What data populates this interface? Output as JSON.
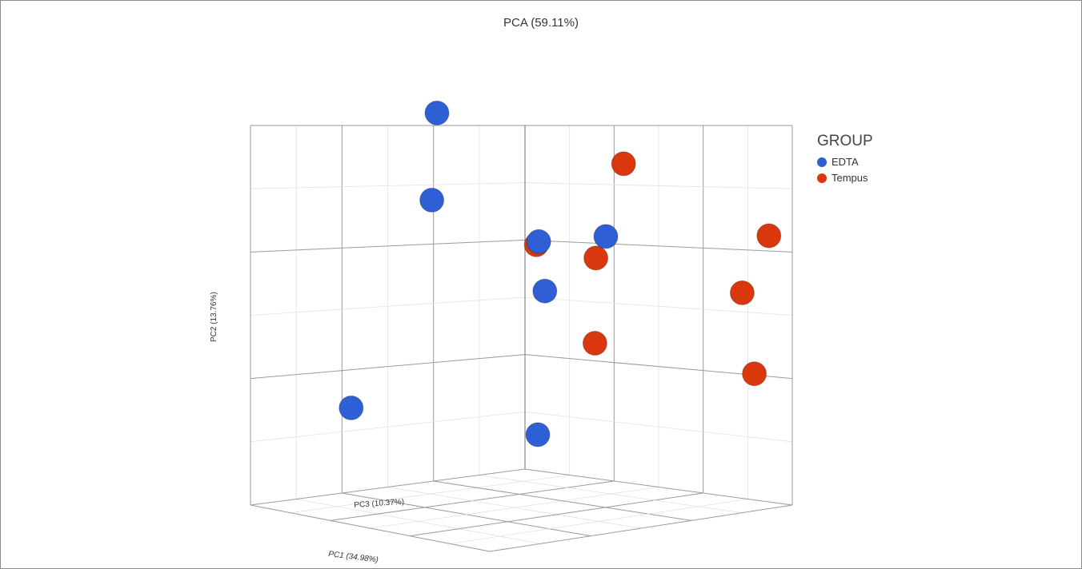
{
  "chart_data": {
    "type": "scatter",
    "subtype": "3d",
    "title": "PCA (59.11%)",
    "axes": {
      "x": "PC1 (34.98%)",
      "y": "PC2 (13.76%)",
      "z": "PC3 (10.37%)"
    },
    "legend": {
      "title": "GROUP",
      "placement": "right"
    },
    "series": [
      {
        "name": "EDTA",
        "color": "#2e5fd4",
        "points": [
          {
            "x": -0.5,
            "y": 2.9,
            "z": 0.4
          },
          {
            "x": -1.2,
            "y": 1.4,
            "z": 0.1
          },
          {
            "x": -0.4,
            "y": 0.9,
            "z": -0.3
          },
          {
            "x": 0.0,
            "y": 1.1,
            "z": -0.6
          },
          {
            "x": -0.1,
            "y": 0.1,
            "z": -0.2
          },
          {
            "x": -1.6,
            "y": -2.2,
            "z": 0.5
          },
          {
            "x": 0.0,
            "y": -2.3,
            "z": -0.1
          }
        ]
      },
      {
        "name": "Tempus",
        "color": "#d9380f",
        "points": [
          {
            "x": 1.1,
            "y": 2.4,
            "z": -0.2
          },
          {
            "x": 0.6,
            "y": 0.9,
            "z": 0.2
          },
          {
            "x": 1.3,
            "y": 0.8,
            "z": 0.1
          },
          {
            "x": 2.9,
            "y": 1.5,
            "z": -0.4
          },
          {
            "x": 2.7,
            "y": 0.5,
            "z": -0.3
          },
          {
            "x": 1.7,
            "y": -0.6,
            "z": 0.3
          },
          {
            "x": 3.3,
            "y": -0.8,
            "z": -0.1
          }
        ]
      }
    ]
  }
}
